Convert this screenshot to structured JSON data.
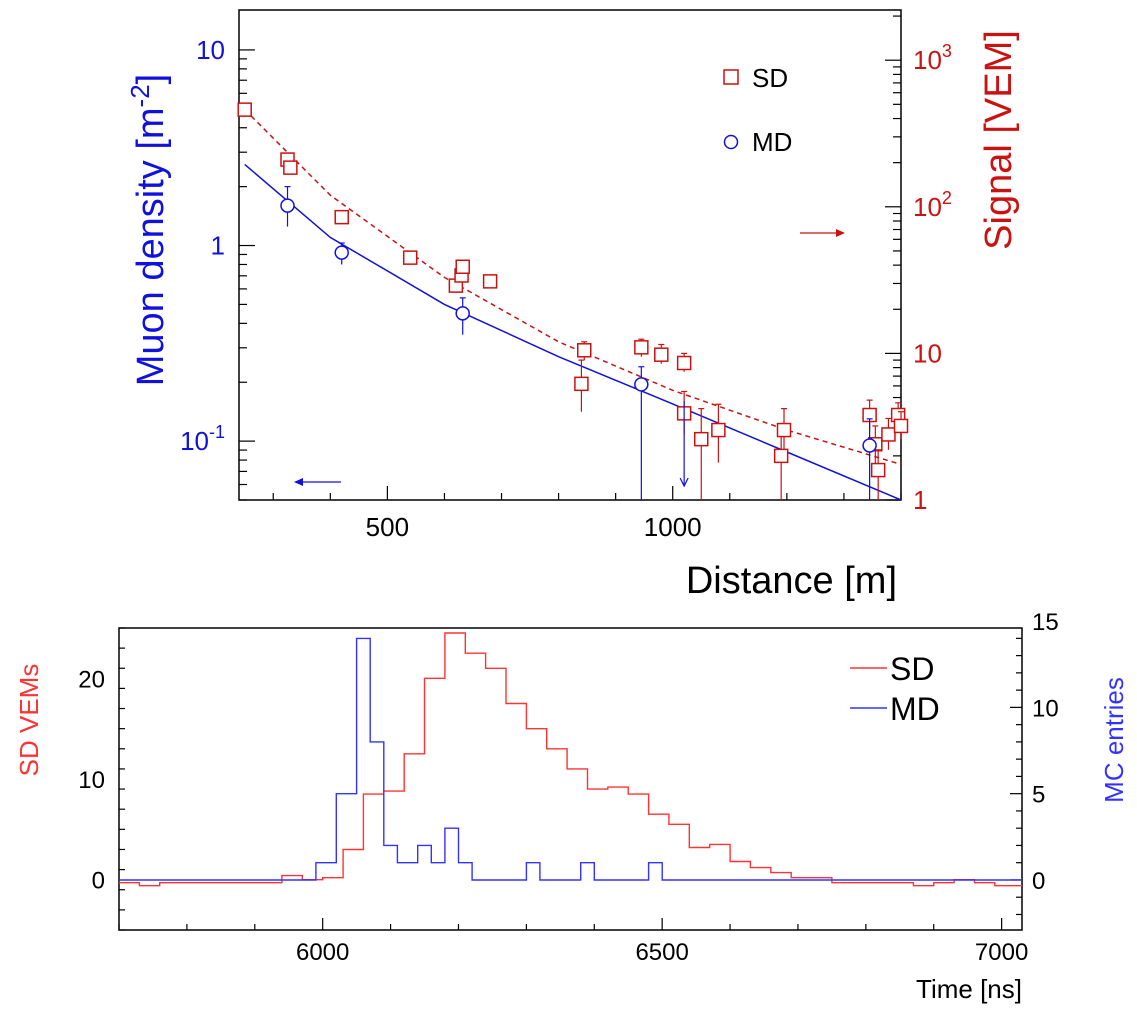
{
  "colors": {
    "sd": "#cc1111",
    "md": "#1111dd",
    "axis": "#000000",
    "bottom_sd": "#ff3333",
    "bottom_md": "#3333ff"
  },
  "chart_data": [
    {
      "type": "scatter",
      "x_axis": {
        "label": "Distance [m]",
        "range": [
          240,
          1400
        ],
        "ticks": [
          500,
          1000
        ],
        "tick_labels": [
          "500",
          "1000"
        ]
      },
      "y_left": {
        "label_main": "Muon density [m",
        "label_sup": "-2",
        "label_end": "]",
        "scale": "log",
        "range": [
          0.05,
          16
        ],
        "ticks": [
          {
            "value": 10,
            "base": "10",
            "sup": ""
          },
          {
            "value": 1,
            "base": "1",
            "sup": ""
          },
          {
            "value": 0.1,
            "base": "10",
            "sup": "-1"
          }
        ]
      },
      "y_right": {
        "label": "Signal [VEM]",
        "scale": "log",
        "range": [
          1,
          2200
        ],
        "ticks": [
          {
            "value": 1000,
            "base": "10",
            "sup": "3"
          },
          {
            "value": 100,
            "base": "10",
            "sup": "2"
          },
          {
            "value": 10,
            "base": "10",
            "sup": ""
          },
          {
            "value": 1,
            "base": "1",
            "sup": ""
          }
        ]
      },
      "legend": {
        "position": "top-right",
        "entries": [
          {
            "name": "SD",
            "marker": "square"
          },
          {
            "name": "MD",
            "marker": "circle"
          }
        ]
      },
      "series": [
        {
          "name": "SD",
          "axis": "right",
          "marker": "square",
          "points": [
            {
              "x": 250,
              "y": 460,
              "lo": 460,
              "hi": 460
            },
            {
              "x": 325,
              "y": 210,
              "lo": 210,
              "hi": 210
            },
            {
              "x": 330,
              "y": 185,
              "lo": 185,
              "hi": 185
            },
            {
              "x": 420,
              "y": 85,
              "lo": 85,
              "hi": 85
            },
            {
              "x": 540,
              "y": 45,
              "lo": 43,
              "hi": 47
            },
            {
              "x": 620,
              "y": 29,
              "lo": 26,
              "hi": 32
            },
            {
              "x": 630,
              "y": 34,
              "lo": 32,
              "hi": 36
            },
            {
              "x": 632,
              "y": 39,
              "lo": 37,
              "hi": 42
            },
            {
              "x": 680,
              "y": 31,
              "lo": 29,
              "hi": 33
            },
            {
              "x": 840,
              "y": 6.2,
              "lo": 4.0,
              "hi": 9.0
            },
            {
              "x": 845,
              "y": 10.5,
              "lo": 9.0,
              "hi": 12.0
            },
            {
              "x": 945,
              "y": 11.0,
              "lo": 9.5,
              "hi": 12.5
            },
            {
              "x": 980,
              "y": 9.8,
              "lo": 8.5,
              "hi": 11.5
            },
            {
              "x": 1020,
              "y": 8.6,
              "lo": 7.5,
              "hi": 10.0
            },
            {
              "x": 1020,
              "y": 3.9,
              "lo": 2.8,
              "hi": 5.5
            },
            {
              "x": 1050,
              "y": 2.6,
              "lo": 1.0,
              "hi": 4.2
            },
            {
              "x": 1080,
              "y": 3.0,
              "lo": 1.8,
              "hi": 4.5
            },
            {
              "x": 1190,
              "y": 2.0,
              "lo": 1.0,
              "hi": 3.0
            },
            {
              "x": 1195,
              "y": 3.0,
              "lo": 2.2,
              "hi": 4.2
            },
            {
              "x": 1345,
              "y": 3.8,
              "lo": 3.0,
              "hi": 4.8
            },
            {
              "x": 1355,
              "y": 2.4,
              "lo": 1.6,
              "hi": 3.2
            },
            {
              "x": 1360,
              "y": 1.6,
              "lo": 1.0,
              "hi": 2.2
            },
            {
              "x": 1378,
              "y": 2.8,
              "lo": 2.2,
              "hi": 3.6
            },
            {
              "x": 1395,
              "y": 3.8,
              "lo": 3.0,
              "hi": 4.6
            },
            {
              "x": 1400,
              "y": 3.2,
              "lo": 2.6,
              "hi": 4.0
            }
          ],
          "fit": {
            "style": "dashed",
            "x": [
              250,
              400,
              600,
              800,
              1000,
              1200,
              1400
            ],
            "y": [
              460,
              120,
              33,
              12,
              5.6,
              3.0,
              1.75
            ]
          }
        },
        {
          "name": "MD",
          "axis": "left",
          "marker": "circle",
          "points": [
            {
              "x": 325,
              "y": 1.6,
              "lo": 1.25,
              "hi": 2.0
            },
            {
              "x": 420,
              "y": 0.92,
              "lo": 0.8,
              "hi": 1.03
            },
            {
              "x": 632,
              "y": 0.45,
              "lo": 0.35,
              "hi": 0.54
            },
            {
              "x": 945,
              "y": 0.195,
              "lo": 0.05,
              "hi": 0.24
            },
            {
              "x": 1345,
              "y": 0.095,
              "lo": 0.05,
              "hi": 0.13
            }
          ],
          "upper_limit": {
            "x": 1020,
            "y": 0.16
          },
          "fit": {
            "style": "solid",
            "x": [
              250,
              400,
              600,
              800,
              1000,
              1200,
              1400
            ],
            "y": [
              2.6,
              1.1,
              0.5,
              0.27,
              0.155,
              0.088,
              0.05
            ]
          }
        }
      ],
      "arrows": [
        {
          "series": "SD",
          "direction": "right"
        },
        {
          "series": "MD",
          "direction": "left"
        }
      ]
    },
    {
      "type": "line",
      "step": true,
      "x_axis": {
        "label": "Time [ns]",
        "range": [
          5700,
          7030
        ],
        "ticks": [
          6000,
          6500,
          7000
        ],
        "tick_labels": [
          "6000",
          "6500",
          "7000"
        ]
      },
      "y_left": {
        "label": "SD VEMs",
        "range": [
          -5,
          25
        ],
        "ticks": [
          0,
          10,
          20
        ]
      },
      "y_right": {
        "label": "MC entries",
        "range": [
          -2.9,
          14.6
        ],
        "ticks": [
          0,
          5,
          10,
          15
        ]
      },
      "legend": {
        "position": "top-right",
        "entries": [
          {
            "name": "SD"
          },
          {
            "name": "MD"
          }
        ]
      },
      "series": [
        {
          "name": "SD",
          "axis": "left",
          "edges": [
            5700,
            5730,
            5760,
            5790,
            5820,
            5850,
            5880,
            5910,
            5940,
            5970,
            6000,
            6030,
            6060,
            6090,
            6120,
            6150,
            6180,
            6210,
            6240,
            6270,
            6300,
            6330,
            6360,
            6390,
            6420,
            6450,
            6480,
            6510,
            6540,
            6570,
            6600,
            6630,
            6660,
            6690,
            6720,
            6750,
            6780,
            6810,
            6840,
            6870,
            6900,
            6930,
            6960,
            6990,
            7030
          ],
          "values": [
            -0.3,
            -0.6,
            -0.3,
            -0.3,
            -0.3,
            -0.3,
            -0.3,
            -0.3,
            0.4,
            0.0,
            0.2,
            3.0,
            8.5,
            8.8,
            12.5,
            20.0,
            24.5,
            22.5,
            21.0,
            17.5,
            15.0,
            13.0,
            11.0,
            9.0,
            9.2,
            8.5,
            6.5,
            5.5,
            3.2,
            3.5,
            1.8,
            1.2,
            0.7,
            0.2,
            0.2,
            -0.3,
            -0.3,
            -0.3,
            -0.3,
            -0.6,
            -0.3,
            0.0,
            -0.3,
            -0.6
          ]
        },
        {
          "name": "MD",
          "axis": "right",
          "edges": [
            5700,
            5990,
            6020,
            6050,
            6070,
            6090,
            6110,
            6140,
            6160,
            6180,
            6200,
            6220,
            6300,
            6320,
            6380,
            6400,
            6480,
            6500,
            7030
          ],
          "values": [
            0,
            1,
            5,
            14,
            8,
            2,
            1,
            2,
            1,
            3,
            1,
            0,
            1,
            0,
            1,
            0,
            1,
            0
          ]
        }
      ]
    }
  ]
}
